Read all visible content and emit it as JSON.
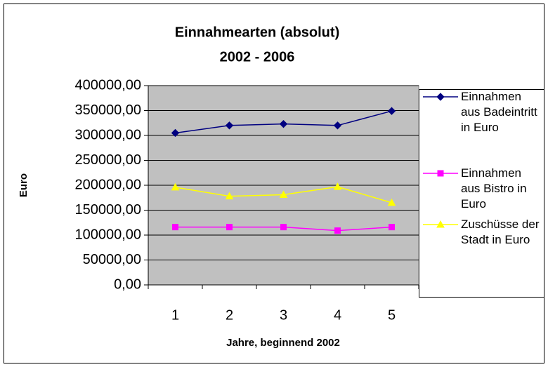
{
  "chart_data": {
    "type": "line",
    "title": "Einnahmearten (absolut)",
    "subtitle": "2002 - 2006",
    "x_label": "Jahre, beginnend 2002",
    "y_label": "Euro",
    "categories": [
      "1",
      "2",
      "3",
      "4",
      "5"
    ],
    "series": [
      {
        "name": "Einnahmen aus Badeintritt in Euro",
        "color": "#000080",
        "marker": "diamond",
        "values": [
          305000,
          320000,
          323000,
          320000,
          349000
        ]
      },
      {
        "name": "Einnahmen aus Bistro in Euro",
        "color": "#ff00ff",
        "marker": "square",
        "values": [
          116000,
          116000,
          116000,
          109000,
          116000
        ]
      },
      {
        "name": "Zuschüsse der Stadt in Euro",
        "color": "#ffff00",
        "marker": "triangle",
        "values": [
          196000,
          178000,
          181000,
          197000,
          165000
        ]
      }
    ],
    "ylim": [
      0,
      400000
    ],
    "yticks": [
      {
        "value": 0,
        "label": "0,00"
      },
      {
        "value": 50000,
        "label": "50000,00"
      },
      {
        "value": 100000,
        "label": "100000,00"
      },
      {
        "value": 150000,
        "label": "150000,00"
      },
      {
        "value": 200000,
        "label": "200000,00"
      },
      {
        "value": 250000,
        "label": "250000,00"
      },
      {
        "value": 300000,
        "label": "300000,00"
      },
      {
        "value": 350000,
        "label": "350000,00"
      },
      {
        "value": 400000,
        "label": "400000,00"
      }
    ],
    "grid": true,
    "legend": "right"
  }
}
